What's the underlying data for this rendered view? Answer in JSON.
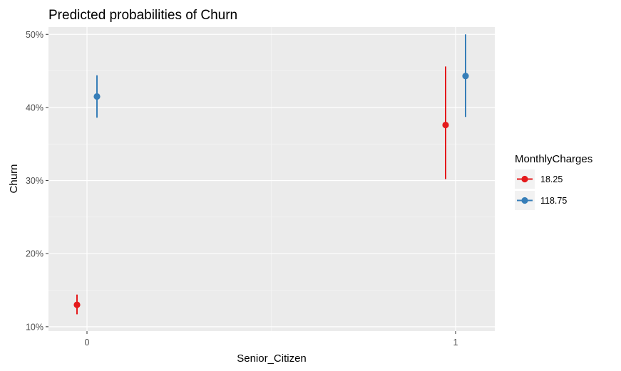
{
  "chart_data": {
    "type": "scatter",
    "title": "Predicted probabilities of Churn",
    "xlabel": "Senior_Citizen",
    "ylabel": "Churn",
    "categories": [
      "0",
      "1"
    ],
    "ylim": [
      0.094,
      0.51
    ],
    "y_ticks": [
      0.1,
      0.2,
      0.3,
      0.4,
      0.5
    ],
    "y_tick_labels": [
      "10%",
      "20%",
      "30%",
      "40%",
      "50%"
    ],
    "grid": true,
    "legend": {
      "title": "MonthlyCharges",
      "position": "right"
    },
    "series": [
      {
        "name": "18.25",
        "color": "#e41a1c",
        "values": [
          0.13,
          0.376
        ],
        "lower": [
          0.117,
          0.302
        ],
        "upper": [
          0.144,
          0.456
        ]
      },
      {
        "name": "118.75",
        "color": "#377eb8",
        "values": [
          0.415,
          0.443
        ],
        "lower": [
          0.386,
          0.387
        ],
        "upper": [
          0.444,
          0.5
        ]
      }
    ]
  }
}
